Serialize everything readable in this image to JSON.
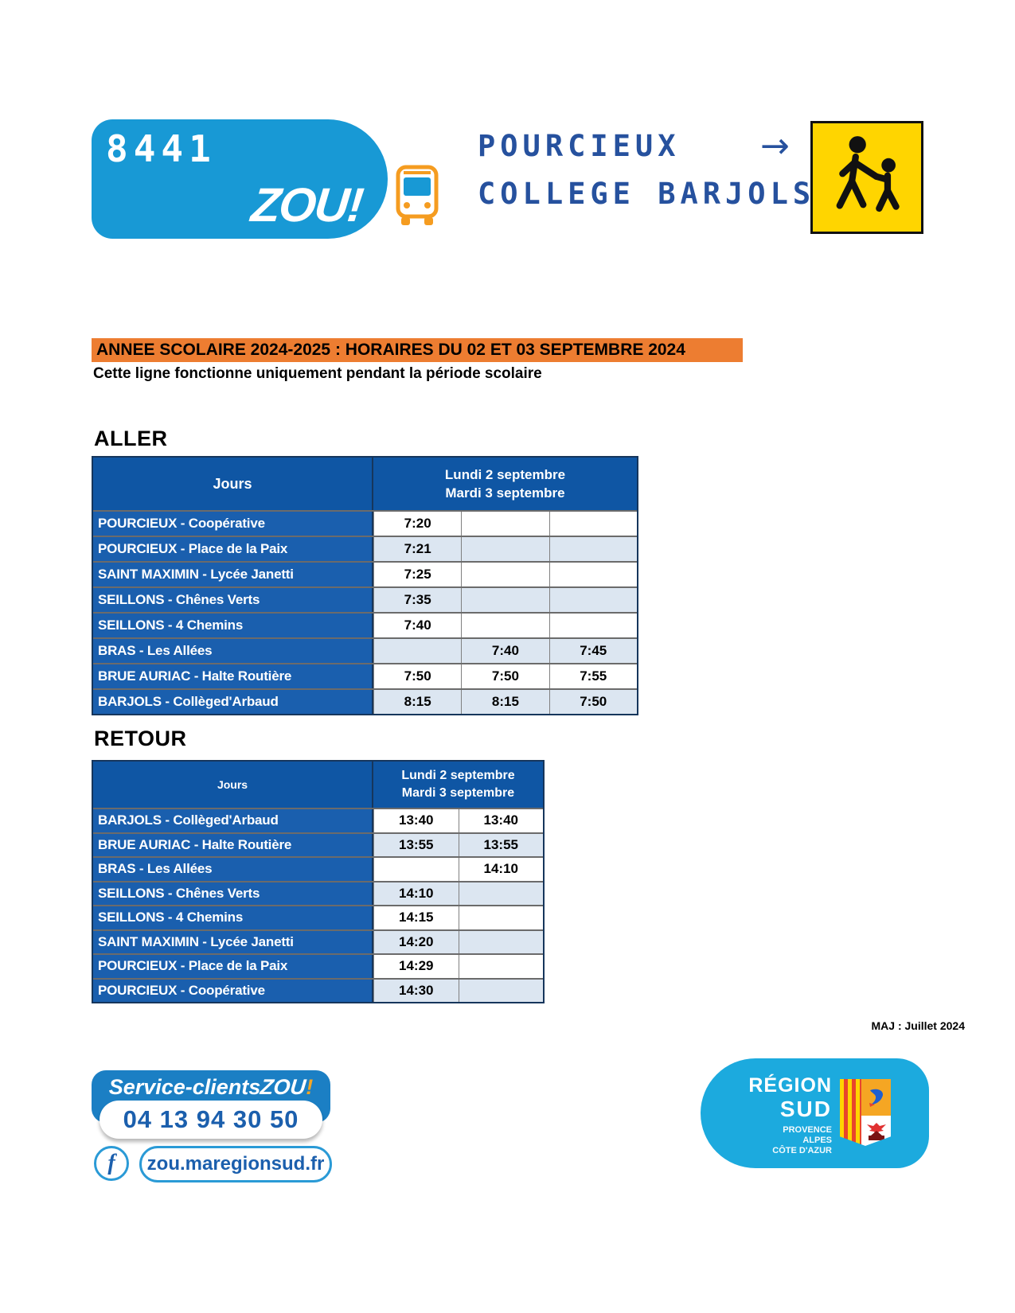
{
  "header": {
    "line_number": "8441",
    "brand": "ZOU!",
    "route_from": "POURCIEUX",
    "arrow": "→",
    "route_to": "COLLEGE BARJOLS"
  },
  "banner": {
    "title": "ANNEE SCOLAIRE 2024-2025 : HORAIRES DU 02 ET 03 SEPTEMBRE 2024",
    "subtitle": "Cette ligne fonctionne uniquement pendant la période scolaire"
  },
  "aller": {
    "heading": "ALLER",
    "jours_label": "Jours",
    "date_line1": "Lundi 2 septembre",
    "date_line2": "Mardi 3 septembre",
    "rows": [
      {
        "stop": "POURCIEUX - Coopérative",
        "times": [
          "7:20",
          "",
          ""
        ]
      },
      {
        "stop": "POURCIEUX - Place de la Paix",
        "times": [
          "7:21",
          "",
          ""
        ]
      },
      {
        "stop": "SAINT MAXIMIN - Lycée Janetti",
        "times": [
          "7:25",
          "",
          ""
        ]
      },
      {
        "stop": "SEILLONS - Chênes Verts",
        "times": [
          "7:35",
          "",
          ""
        ]
      },
      {
        "stop": "SEILLONS - 4 Chemins",
        "times": [
          "7:40",
          "",
          ""
        ]
      },
      {
        "stop": "BRAS - Les Allées",
        "times": [
          "",
          "7:40",
          "7:45"
        ]
      },
      {
        "stop": "BRUE AURIAC - Halte Routière",
        "times": [
          "7:50",
          "7:50",
          "7:55"
        ]
      },
      {
        "stop": "BARJOLS - Collèged'Arbaud",
        "times": [
          "8:15",
          "8:15",
          "7:50"
        ]
      }
    ]
  },
  "retour": {
    "heading": "RETOUR",
    "jours_label": "Jours",
    "date_line1": "Lundi 2 septembre",
    "date_line2": "Mardi 3 septembre",
    "rows": [
      {
        "stop": "BARJOLS - Collèged'Arbaud",
        "times": [
          "13:40",
          "13:40"
        ]
      },
      {
        "stop": "BRUE AURIAC - Halte Routière",
        "times": [
          "13:55",
          "13:55"
        ]
      },
      {
        "stop": "BRAS - Les Allées",
        "times": [
          "",
          "14:10"
        ]
      },
      {
        "stop": "SEILLONS - Chênes Verts",
        "times": [
          "14:10",
          ""
        ]
      },
      {
        "stop": "SEILLONS - 4 Chemins",
        "times": [
          "14:15",
          ""
        ]
      },
      {
        "stop": "SAINT MAXIMIN - Lycée Janetti",
        "times": [
          "14:20",
          ""
        ]
      },
      {
        "stop": "POURCIEUX - Place de la Paix",
        "times": [
          "14:29",
          ""
        ]
      },
      {
        "stop": "POURCIEUX - Coopérative",
        "times": [
          "14:30",
          ""
        ]
      }
    ]
  },
  "footer": {
    "maj": "MAJ : Juillet 2024",
    "service_label": "Service-clients ",
    "service_brand": "ZOU",
    "service_bang": "!",
    "phone": "04 13 94 30 50",
    "facebook_glyph": "f",
    "website": "zou.maregionsud.fr",
    "region_line1": "RÉGION",
    "region_line2": "SUD",
    "region_sub1": "PROVENCE",
    "region_sub2": "ALPES",
    "region_sub3": "CÔTE D'AZUR"
  },
  "colors": {
    "zou_blue": "#1899d5",
    "title_blue": "#26519e",
    "banner_orange": "#ed7d31",
    "table_header_blue": "#0f56a4",
    "row_blue": "#1a5fae",
    "alt_cell": "#dce6f1",
    "sign_yellow": "#ffd500",
    "region_blue": "#1caade",
    "footer_badge_blue": "#1b7fc4",
    "bus_orange": "#f59c20"
  }
}
